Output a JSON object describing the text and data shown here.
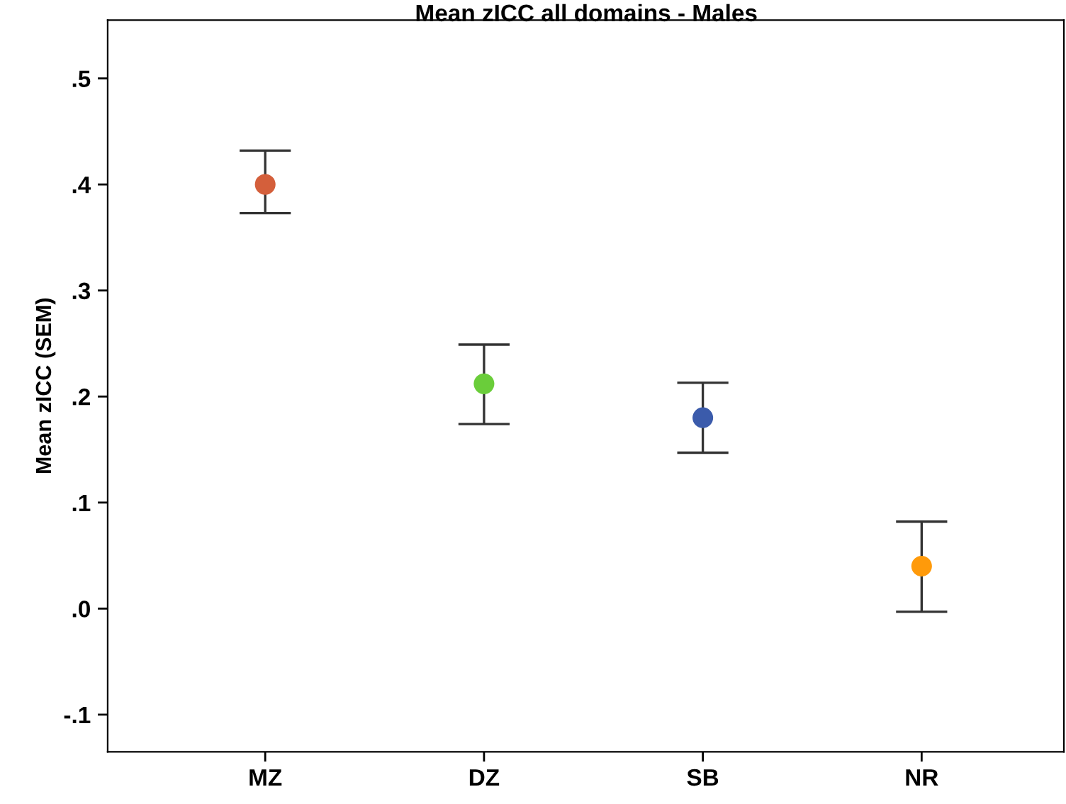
{
  "chart_data": {
    "type": "scatter",
    "title": "Mean zICC all domains - Males",
    "ylabel": "Mean zICC (SEM)",
    "categories": [
      "MZ",
      "DZ",
      "SB",
      "NR"
    ],
    "values": [
      0.4,
      0.212,
      0.18,
      0.04
    ],
    "colors": [
      "#d45f3b",
      "#6acd3a",
      "#3b5bab",
      "#ff9a0a"
    ],
    "errors": [
      [
        0.373,
        0.432
      ],
      [
        0.174,
        0.249
      ],
      [
        0.147,
        0.213
      ],
      [
        -0.003,
        0.082
      ]
    ],
    "ylim": [
      -0.135,
      0.555
    ],
    "yticks": [
      {
        "value": -0.1,
        "label": "-.1"
      },
      {
        "value": 0.0,
        "label": ".0"
      },
      {
        "value": 0.1,
        "label": ".1"
      },
      {
        "value": 0.2,
        "label": ".2"
      },
      {
        "value": 0.3,
        "label": ".3"
      },
      {
        "value": 0.4,
        "label": ".4"
      },
      {
        "value": 0.5,
        "label": ".5"
      }
    ],
    "marker": "circle",
    "grid": false,
    "legend": false
  }
}
